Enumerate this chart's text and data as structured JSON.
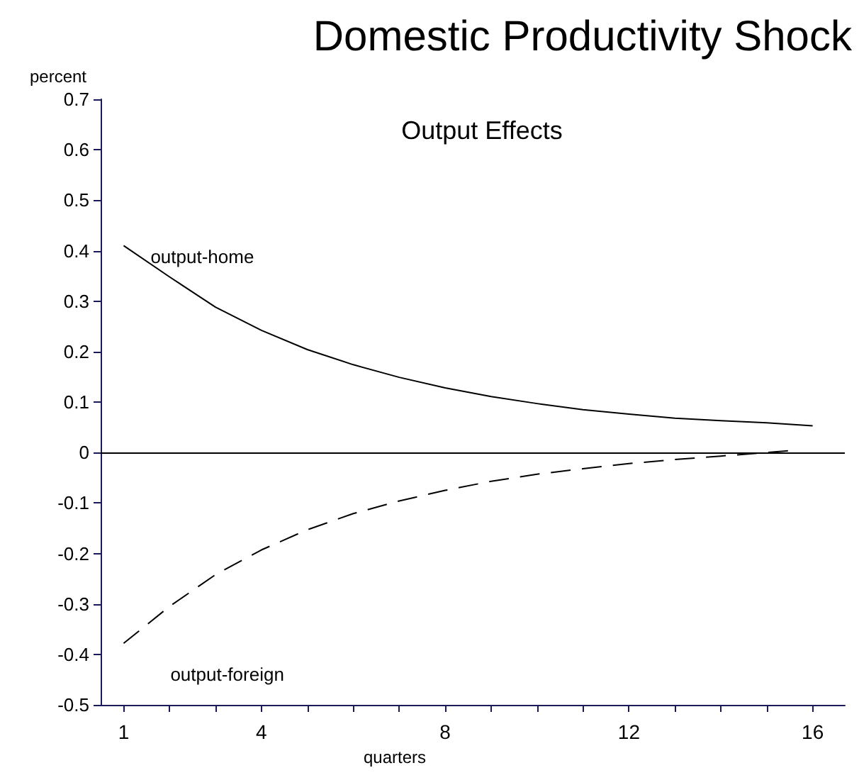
{
  "chart_data": {
    "type": "line",
    "title": "Domestic Productivity Shock",
    "subtitle": "Output Effects",
    "xlabel": "quarters",
    "ylabel": "percent",
    "series": [
      {
        "name": "output-home",
        "color": "#000000",
        "line_style": "solid",
        "x": [
          1,
          2,
          3,
          4,
          5,
          6,
          7,
          8,
          9,
          10,
          11,
          12,
          13,
          14,
          15,
          16
        ],
        "values": [
          0.41,
          0.348,
          0.288,
          0.242,
          0.204,
          0.174,
          0.149,
          0.128,
          0.111,
          0.097,
          0.085,
          0.076,
          0.068,
          0.063,
          0.059,
          0.053
        ]
      },
      {
        "name": "output-foreign",
        "color": "#000000",
        "line_style": "dashed",
        "x": [
          1,
          2,
          3,
          4,
          5,
          6,
          7,
          8,
          9,
          10,
          11,
          12,
          13,
          14,
          15,
          15.7
        ],
        "values": [
          -0.378,
          -0.305,
          -0.242,
          -0.193,
          -0.153,
          -0.121,
          -0.096,
          -0.075,
          -0.057,
          -0.043,
          -0.032,
          -0.022,
          -0.014,
          -0.007,
          0.0,
          0.005
        ]
      }
    ],
    "xlim": [
      0.5,
      16.7
    ],
    "xticks": [
      1,
      {
        "value": 2,
        "label": null
      },
      {
        "value": 3,
        "label": null
      },
      4,
      {
        "value": 5,
        "label": null
      },
      {
        "value": 6,
        "label": null
      },
      {
        "value": 7,
        "label": null
      },
      8,
      {
        "value": 9,
        "label": null
      },
      {
        "value": 10,
        "label": null
      },
      {
        "value": 11,
        "label": null
      },
      12,
      {
        "value": 13,
        "label": null
      },
      {
        "value": 14,
        "label": null
      },
      {
        "value": 15,
        "label": null
      },
      16
    ],
    "ylim": [
      -0.5,
      0.7
    ],
    "yticks": [
      -0.5,
      -0.4,
      -0.3,
      -0.2,
      -0.1,
      0,
      0.1,
      0.2,
      0.3,
      0.4,
      0.5,
      0.6,
      0.7
    ],
    "ref_lines": [
      {
        "axis": "y",
        "value": 0,
        "color": "#000000",
        "line_style": "solid"
      }
    ],
    "grid": false,
    "legend": false,
    "marker": "none"
  }
}
